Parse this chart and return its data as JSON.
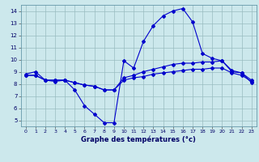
{
  "hours": [
    0,
    1,
    2,
    3,
    4,
    5,
    6,
    7,
    8,
    9,
    10,
    11,
    12,
    13,
    14,
    15,
    16,
    17,
    18,
    19,
    20,
    21,
    22,
    23
  ],
  "line1": [
    8.8,
    9.0,
    8.3,
    8.2,
    8.3,
    7.5,
    6.2,
    5.5,
    4.8,
    4.8,
    9.9,
    9.3,
    11.5,
    12.8,
    13.6,
    14.0,
    14.2,
    13.1,
    10.5,
    10.1,
    9.9,
    9.0,
    8.9,
    8.1
  ],
  "line2": [
    8.7,
    8.7,
    8.3,
    8.3,
    8.3,
    8.1,
    7.9,
    7.8,
    7.5,
    7.5,
    8.3,
    8.5,
    8.6,
    8.8,
    8.9,
    9.0,
    9.1,
    9.2,
    9.2,
    9.3,
    9.3,
    8.9,
    8.7,
    8.2
  ],
  "line3": [
    8.7,
    8.7,
    8.3,
    8.3,
    8.3,
    8.1,
    7.9,
    7.8,
    7.5,
    7.5,
    8.5,
    8.7,
    9.0,
    9.2,
    9.4,
    9.6,
    9.7,
    9.7,
    9.8,
    9.8,
    9.9,
    9.1,
    8.9,
    8.3
  ],
  "line_color": "#0000cc",
  "bg_color": "#cce8ec",
  "grid_color": "#99bcc0",
  "xlabel": "Graphe des températures (°c)",
  "ylim": [
    4.5,
    14.5
  ],
  "xlim": [
    -0.5,
    23.5
  ],
  "yticks": [
    5,
    6,
    7,
    8,
    9,
    10,
    11,
    12,
    13,
    14
  ],
  "xticks": [
    0,
    1,
    2,
    3,
    4,
    5,
    6,
    7,
    8,
    9,
    10,
    11,
    12,
    13,
    14,
    15,
    16,
    17,
    18,
    19,
    20,
    21,
    22,
    23
  ]
}
